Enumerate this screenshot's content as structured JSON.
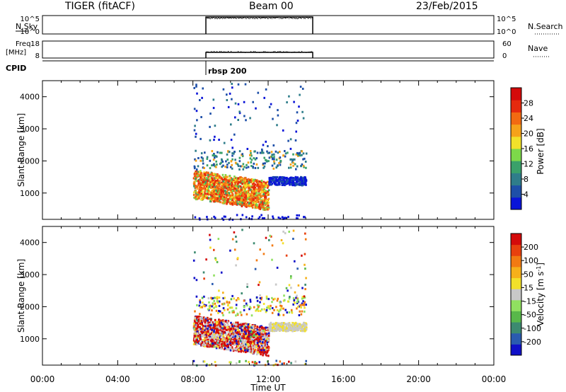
{
  "header": {
    "station": "TIGER (fitACF)",
    "beam": "Beam 00",
    "date": "23/Feb/2015"
  },
  "strips": {
    "nsky": {
      "label": "N.Sky",
      "ticks_left": [
        "10^5",
        "10^0"
      ],
      "ticks_right": [
        "10^5",
        "10^0"
      ],
      "right_label": "N.Search"
    },
    "freq": {
      "label_line1": "Freq.",
      "label_line2": "[MHz]",
      "ticks_left": [
        "18",
        "8"
      ],
      "ticks_right": [
        "60",
        "0"
      ],
      "right_label": "Nave"
    },
    "cpid": {
      "label": "CPID",
      "program": "rbsp 200"
    }
  },
  "chart_data": [
    {
      "type": "heatmap",
      "panel": "power",
      "ylabel": "Slant Range [km]",
      "xlim": [
        "00:00",
        "00:00"
      ],
      "ylim": [
        180,
        4500
      ],
      "yticks": [
        1000,
        2000,
        3000,
        4000
      ],
      "data_extent_ut": [
        "08:00",
        "14:00"
      ],
      "colorbar": {
        "label": "Power [dB]",
        "ticks": [
          "4",
          "8",
          "12",
          "16",
          "20",
          "24",
          "28"
        ],
        "colors": [
          "#0a14d8",
          "#1e4fa8",
          "#2f7d8a",
          "#3aa16a",
          "#7dd84a",
          "#f2e12a",
          "#f6a21a",
          "#f26a12",
          "#e52a0e",
          "#d40a0a"
        ]
      }
    },
    {
      "type": "heatmap",
      "panel": "velocity",
      "ylabel": "Slant Range [km]",
      "xlabel": "Time UT",
      "xticks": [
        "00:00",
        "04:00",
        "08:00",
        "12:00",
        "16:00",
        "20:00",
        "00:00"
      ],
      "ylim": [
        180,
        4500
      ],
      "yticks": [
        1000,
        2000,
        3000,
        4000
      ],
      "colorbar": {
        "label": "Velocity [m s",
        "label_sup": "-1",
        "label_end": "]",
        "ticks": [
          "200",
          "100",
          "50",
          "15",
          "-15",
          "-50",
          "-100",
          "-200"
        ],
        "colors": [
          "#1010c8",
          "#2a5bb0",
          "#3c8a70",
          "#58b84a",
          "#90e060",
          "#c8c8c8",
          "#f2e02a",
          "#f6b01a",
          "#f27a12",
          "#e8400e",
          "#d40a0a"
        ]
      }
    }
  ]
}
